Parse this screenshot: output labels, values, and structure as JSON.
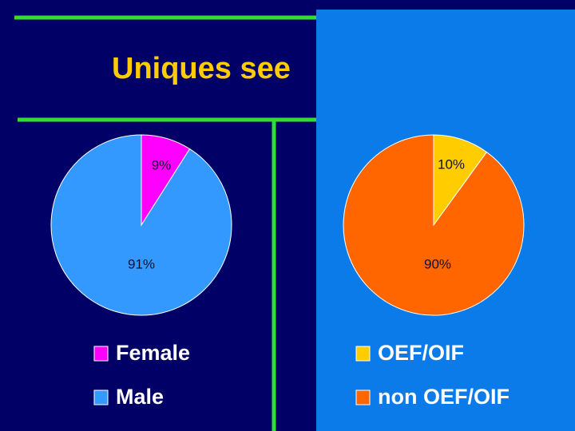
{
  "slide": {
    "title": "Uniques see"
  },
  "chart_data": [
    {
      "type": "pie",
      "categories": [
        "Female",
        "Male"
      ],
      "values": [
        9,
        91
      ],
      "value_labels": [
        "9%",
        "91%"
      ],
      "colors": [
        "#ff00ff",
        "#3399ff"
      ]
    },
    {
      "type": "pie",
      "categories": [
        "OEF/OIF",
        "non OEF/OIF"
      ],
      "values": [
        10,
        90
      ],
      "value_labels": [
        "10%",
        "90%"
      ],
      "colors": [
        "#ffcc00",
        "#ff6600"
      ]
    }
  ]
}
